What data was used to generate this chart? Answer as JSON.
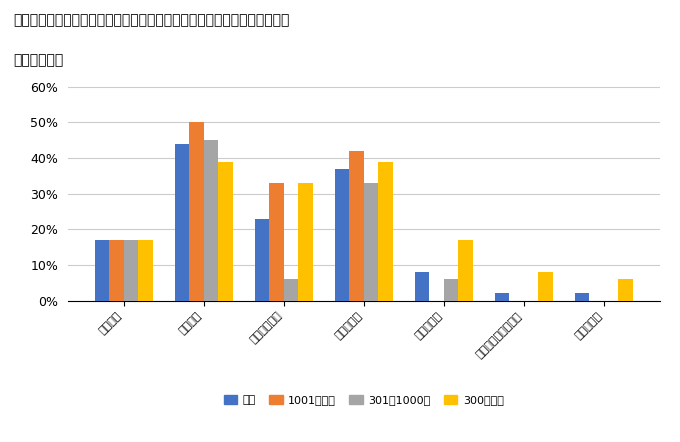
{
  "title_line1": "［図表６］８～９月に対面形式で実施したインターンシップの日数タイプ",
  "title_line2": "（複数回答）",
  "categories": [
    "半日程度",
    "１日程度",
    "２～３日程度",
    "１週間程度",
    "２週間程度",
    "３週間～１カ月程度",
    "１カ月以上"
  ],
  "series": {
    "全体": [
      17,
      44,
      23,
      37,
      8,
      2,
      2
    ],
    "1001名以上": [
      17,
      50,
      33,
      42,
      0,
      0,
      0
    ],
    "301〜1000名": [
      17,
      45,
      6,
      33,
      6,
      0,
      0
    ],
    "300名以下": [
      17,
      39,
      33,
      39,
      17,
      8,
      6
    ]
  },
  "colors": {
    "全体": "#4472C4",
    "1001名以上": "#ED7D31",
    "301〜1000名": "#A5A5A5",
    "300名以下": "#FFC000"
  },
  "legend_labels": [
    "全体",
    "1001名以上",
    "301〜1000名",
    "300名以下"
  ],
  "ylim": [
    0,
    62
  ],
  "yticks": [
    0,
    10,
    20,
    30,
    40,
    50,
    60
  ],
  "ytick_labels": [
    "0%",
    "10%",
    "20%",
    "30%",
    "40%",
    "50%",
    "60%"
  ],
  "background_color": "#FFFFFF",
  "grid_color": "#CCCCCC"
}
